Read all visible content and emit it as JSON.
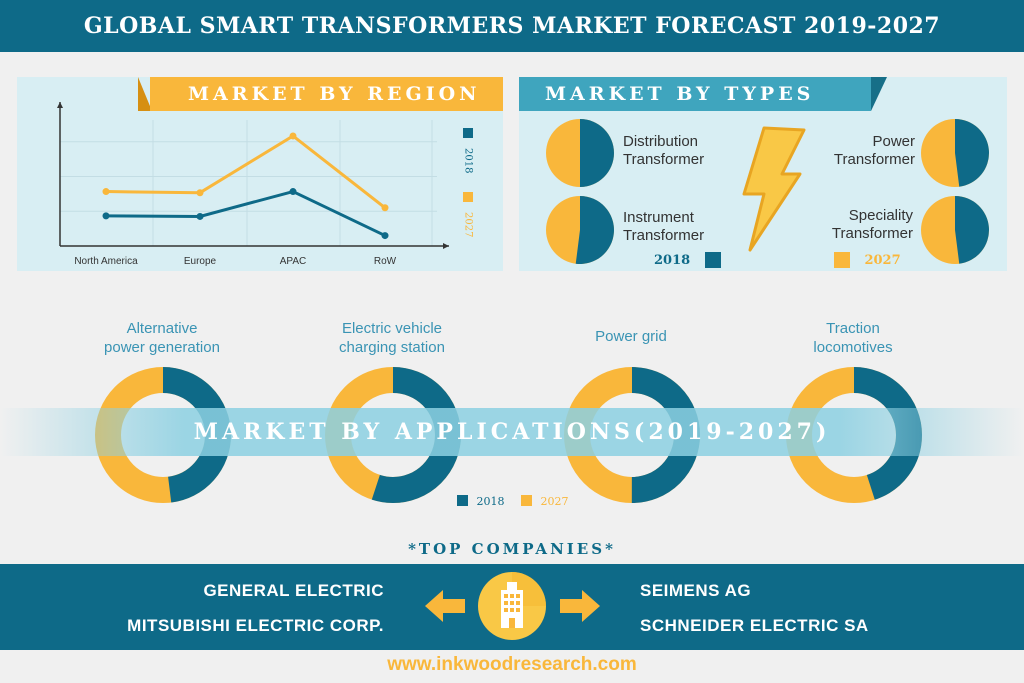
{
  "title": "GLOBAL SMART TRANSFORMERS MARKET FORECAST 2019-2027",
  "colors": {
    "teal": "#0e6a88",
    "yellow": "#f9b73b",
    "light_panel": "#d8eef3",
    "light_blue": "#3fa5be"
  },
  "region": {
    "banner": "MARKET BY REGION",
    "legend": [
      "2018",
      "2027"
    ]
  },
  "types": {
    "banner": "MARKET BY TYPES",
    "items": [
      {
        "label_lines": [
          "Distribution",
          "Transformer"
        ],
        "share_2018": 0.5
      },
      {
        "label_lines": [
          "Power",
          "Transformer"
        ],
        "share_2018": 0.48
      },
      {
        "label_lines": [
          "Instrument",
          "Transformer"
        ],
        "share_2018": 0.52
      },
      {
        "label_lines": [
          "Speciality",
          "Transformer"
        ],
        "share_2018": 0.48
      }
    ],
    "legend": [
      "2018",
      "2027"
    ],
    "icon": "lightning-bolt-icon"
  },
  "applications": {
    "title": "MARKET BY APPLICATIONS(2019-2027)",
    "items": [
      {
        "label_lines": [
          "Alternative",
          "power generation"
        ],
        "share_2018": 0.48
      },
      {
        "label_lines": [
          "Electric vehicle",
          "charging station"
        ],
        "share_2018": 0.55
      },
      {
        "label_lines": [
          "Power grid"
        ],
        "share_2018": 0.5
      },
      {
        "label_lines": [
          "Traction",
          "locomotives"
        ],
        "share_2018": 0.45
      }
    ],
    "legend": [
      "2018",
      "2027"
    ]
  },
  "companies": {
    "title": "*TOP COMPANIES*",
    "left": [
      "GENERAL ELECTRIC",
      "MITSUBISHI ELECTRIC CORP."
    ],
    "right": [
      "SEIMENS AG",
      "SCHNEIDER ELECTRIC SA"
    ],
    "icon": "building-icon"
  },
  "website": "www.inkwoodresearch.com",
  "chart_data": {
    "type": "line",
    "categories": [
      "North America",
      "Europe",
      "APAC",
      "RoW"
    ],
    "series": [
      {
        "name": "2018",
        "color": "#0e6a88",
        "values": [
          2.6,
          2.55,
          4.7,
          0.9
        ]
      },
      {
        "name": "2027",
        "color": "#f9b73b",
        "values": [
          4.7,
          4.6,
          9.5,
          3.3
        ]
      }
    ],
    "ylim": [
      0,
      12
    ],
    "grid": true,
    "legend_position": "right"
  }
}
